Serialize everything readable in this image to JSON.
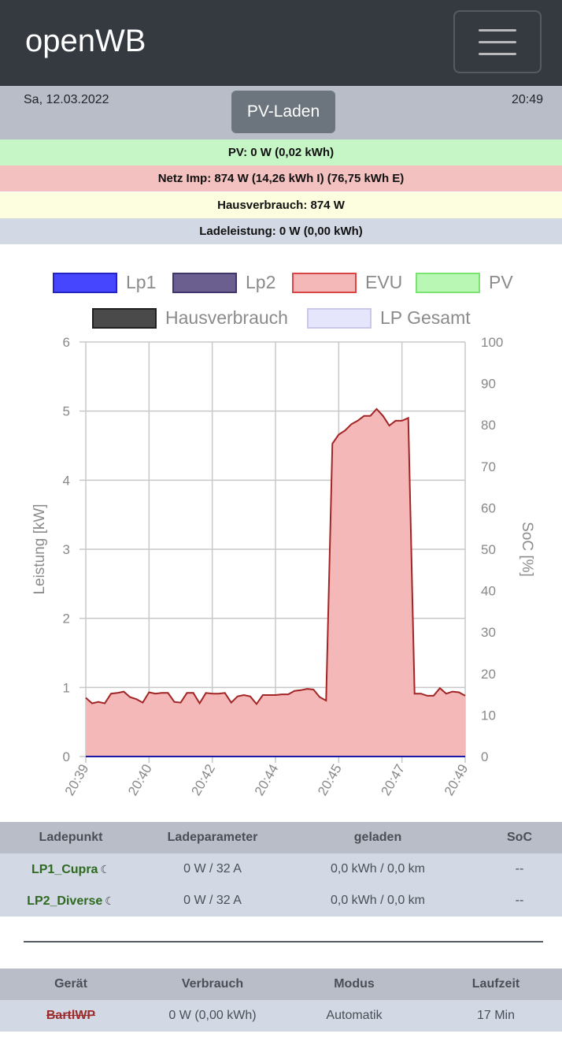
{
  "app": {
    "title": "openWB",
    "menu_icon": "hamburger-icon"
  },
  "status": {
    "date": "Sa, 12.03.2022",
    "time": "20:49",
    "mode_button": "PV-Laden"
  },
  "info_rows": {
    "pv": "PV: 0 W (0,02 kWh)",
    "grid": "Netz Imp: 874 W (14,26 kWh I) (76,75 kWh E)",
    "house": "Hausverbrauch: 874 W",
    "charge": "Ladeleistung: 0 W (0,00 kWh)"
  },
  "colors": {
    "info_pv": "#c6f6c6",
    "info_grid": "#f4c1c1",
    "info_house": "#fdfde0",
    "info_charge": "#d2d8e4",
    "evu_fill": "#f4b8b8",
    "evu_line": "#a22424",
    "lp_line": "#1a1aa8"
  },
  "legend": [
    {
      "label": "Lp1",
      "fill": "#4646ff",
      "border": "#2424c0"
    },
    {
      "label": "Lp2",
      "fill": "#6b5f8f",
      "border": "#3f356a"
    },
    {
      "label": "EVU",
      "fill": "#f4b8b8",
      "border": "#d84545"
    },
    {
      "label": "PV",
      "fill": "#b9f7b4",
      "border": "#7ae372"
    },
    {
      "label": "Hausverbrauch",
      "fill": "#4a4a4a",
      "border": "#202020"
    },
    {
      "label": "LP Gesamt",
      "fill": "#e5e5fb",
      "border": "#c8c8ec"
    }
  ],
  "chart_data": {
    "type": "area",
    "ylabel": "Leistung [kW]",
    "y2label": "SoC [%]",
    "ylim": [
      0,
      6
    ],
    "y2lim": [
      0,
      100
    ],
    "y_ticks": [
      "0",
      "1",
      "2",
      "3",
      "4",
      "5",
      "6"
    ],
    "y2_ticks": [
      "0",
      "10",
      "20",
      "30",
      "40",
      "50",
      "60",
      "70",
      "80",
      "90",
      "100"
    ],
    "x_ticks": [
      "20:39",
      "20:40",
      "20:42",
      "20:44",
      "20:45",
      "20:47",
      "20:49"
    ],
    "grid": true,
    "legend_position": "top",
    "series": [
      {
        "name": "EVU",
        "values": [
          0.85,
          0.77,
          0.79,
          0.77,
          0.91,
          0.92,
          0.94,
          0.86,
          0.83,
          0.78,
          0.93,
          0.91,
          0.92,
          0.92,
          0.79,
          0.78,
          0.92,
          0.92,
          0.77,
          0.92,
          0.91,
          0.91,
          0.92,
          0.78,
          0.87,
          0.89,
          0.87,
          0.76,
          0.89,
          0.89,
          0.89,
          0.9,
          0.9,
          0.95,
          0.96,
          0.98,
          0.97,
          0.86,
          0.81,
          4.53,
          4.66,
          4.72,
          4.81,
          4.86,
          4.93,
          4.93,
          5.03,
          4.93,
          4.79,
          4.86,
          4.86,
          4.9,
          0.91,
          0.91,
          0.88,
          0.88,
          0.99,
          0.91,
          0.94,
          0.93,
          0.88
        ]
      },
      {
        "name": "Lp1",
        "values": [
          0,
          0
        ]
      },
      {
        "name": "Lp2",
        "values": [
          0,
          0
        ]
      },
      {
        "name": "PV",
        "values": [
          0,
          0
        ]
      }
    ]
  },
  "lp_table": {
    "headers": [
      "Ladepunkt",
      "Ladeparameter",
      "geladen",
      "SoC"
    ],
    "rows": [
      {
        "name": "LP1_Cupra",
        "params": "0 W / 32 A",
        "charged": "0,0 kWh / 0,0 km",
        "soc": "--",
        "icon": "moon-icon"
      },
      {
        "name": "LP2_Diverse",
        "params": "0 W / 32 A",
        "charged": "0,0 kWh / 0,0 km",
        "soc": "--",
        "icon": "moon-icon"
      }
    ]
  },
  "device_table": {
    "headers": [
      "Gerät",
      "Verbrauch",
      "Modus",
      "Laufzeit"
    ],
    "rows": [
      {
        "name": "BartlWP",
        "usage": "0 W (0,00 kWh)",
        "mode": "Automatik",
        "runtime": "17 Min"
      }
    ]
  }
}
